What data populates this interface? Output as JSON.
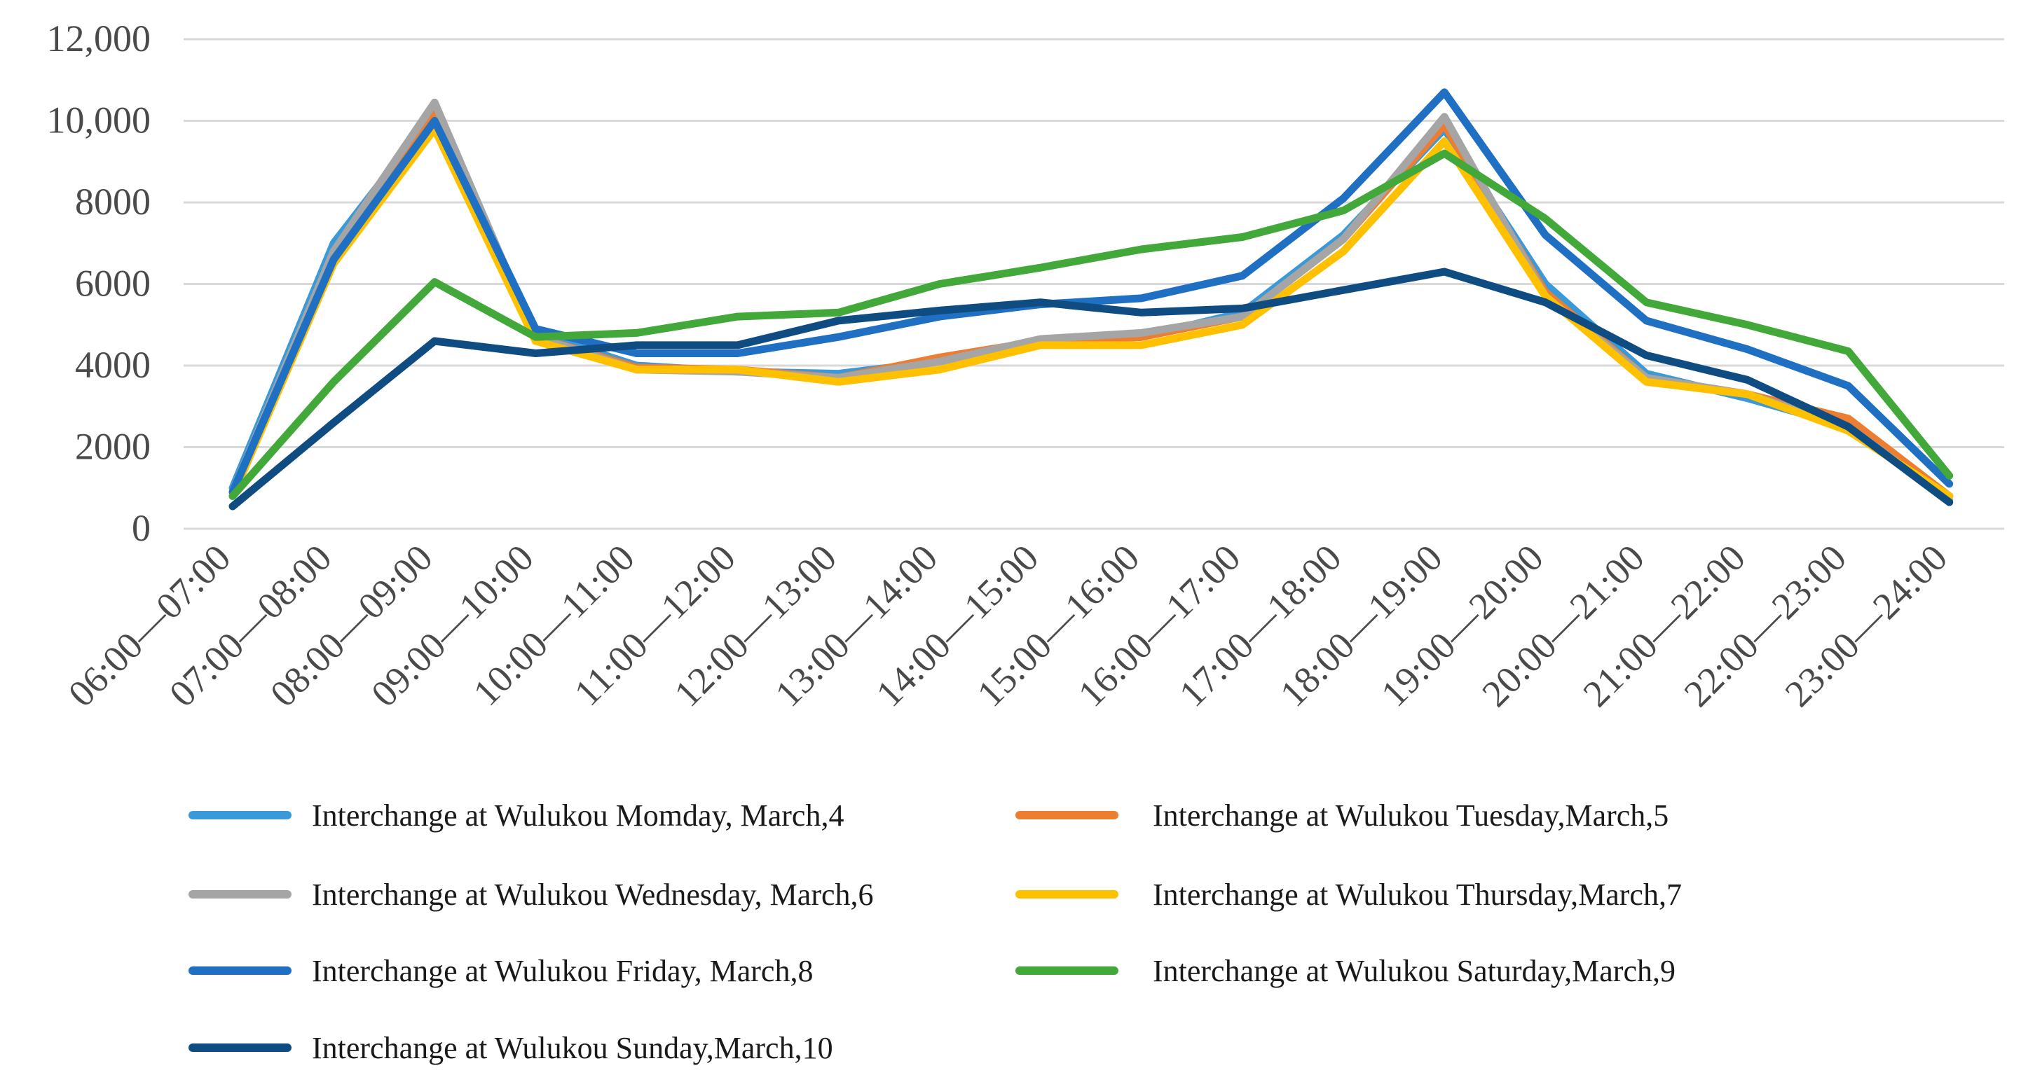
{
  "chart_data": {
    "type": "line",
    "title": "",
    "xlabel": "",
    "ylabel": "",
    "ylim": [
      0,
      12000
    ],
    "y_ticks": [
      0,
      2000,
      4000,
      6000,
      8000,
      10000,
      12000
    ],
    "y_tick_labels": [
      "0",
      "2000",
      "4000",
      "6000",
      "8000",
      "10,000",
      "12,000"
    ],
    "grid": true,
    "legend_position": "bottom",
    "categories": [
      "06:00—07:00",
      "07:00—08:00",
      "08:00—09:00",
      "09:00—10:00",
      "10:00—11:00",
      "11:00—12:00",
      "12:00—13:00",
      "13:00—14:00",
      "14:00—15:00",
      "15:00—16:00",
      "16:00—17:00",
      "17:00—18:00",
      "18:00—19:00",
      "19:00—20:00",
      "20:00—21:00",
      "21:00—22:00",
      "22:00—23:00",
      "23:00—24:00"
    ],
    "series": [
      {
        "name": "Interchange at Wulukou Momday, March,4",
        "color": "#3a9ad9",
        "values": [
          1000,
          7000,
          10200,
          4800,
          4000,
          3850,
          3800,
          4100,
          4600,
          4700,
          5300,
          7200,
          9800,
          6000,
          3800,
          3200,
          2500,
          800
        ]
      },
      {
        "name": "Interchange at Wulukou Tuesday,March,5",
        "color": "#ed7d31",
        "values": [
          900,
          6700,
          10300,
          4700,
          3950,
          3900,
          3700,
          4200,
          4600,
          4700,
          5200,
          7100,
          9900,
          5800,
          3700,
          3300,
          2700,
          800
        ]
      },
      {
        "name": "Interchange at Wulukou Wednesday, March,6",
        "color": "#a5a5a5",
        "values": [
          900,
          6800,
          10450,
          4700,
          3900,
          3850,
          3700,
          4100,
          4650,
          4800,
          5200,
          7100,
          10100,
          5700,
          3700,
          3300,
          2500,
          700
        ]
      },
      {
        "name": "Interchange at Wulukou Thursday,March,7",
        "color": "#ffc000",
        "values": [
          800,
          6500,
          9800,
          4600,
          3900,
          3900,
          3600,
          3900,
          4500,
          4500,
          5000,
          6800,
          9500,
          5700,
          3600,
          3300,
          2400,
          800
        ]
      },
      {
        "name": "Interchange at Wulukou Friday, March,8",
        "color": "#1f6fc2",
        "values": [
          900,
          6600,
          10000,
          4900,
          4300,
          4300,
          4700,
          5200,
          5500,
          5650,
          6200,
          8100,
          10700,
          7200,
          5100,
          4400,
          3500,
          1100
        ]
      },
      {
        "name": "Interchange at Wulukou Saturday,March,9",
        "color": "#43a83a",
        "values": [
          800,
          3600,
          6050,
          4700,
          4800,
          5200,
          5300,
          6000,
          6400,
          6850,
          7150,
          7800,
          9200,
          7600,
          5550,
          5000,
          4350,
          1300
        ]
      },
      {
        "name": "Interchange at Wulukou Sunday,March,10",
        "color": "#0f4c81",
        "values": [
          550,
          2600,
          4600,
          4300,
          4500,
          4500,
          5100,
          5350,
          5550,
          5300,
          5400,
          5850,
          6300,
          5550,
          4250,
          3650,
          2500,
          650
        ]
      }
    ]
  }
}
